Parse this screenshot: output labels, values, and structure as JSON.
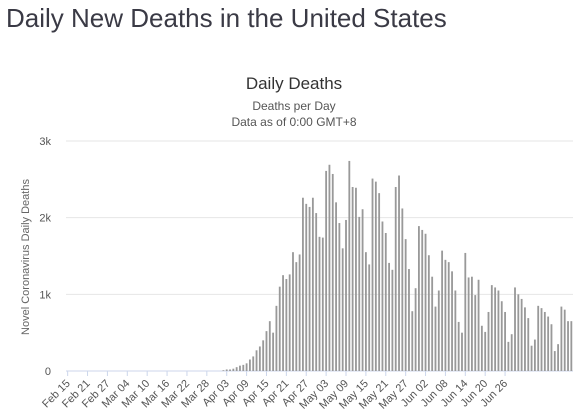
{
  "page": {
    "heading": "Daily New Deaths in the United States"
  },
  "colors": {
    "bar": "#999999",
    "gridline": "#e6e6e6",
    "baseline": "#ccd6eb"
  },
  "chart_data": {
    "type": "bar",
    "title": "Daily Deaths",
    "subtitle": "Deaths per Day",
    "subtitle2": "Data as of 0:00 GMT+8",
    "ylabel": "Novel Coronavirus Daily Deaths",
    "xlabel": "",
    "ylim": [
      0,
      3000
    ],
    "yticks": [
      0,
      1000,
      2000,
      3000
    ],
    "ytick_labels": [
      "0",
      "1k",
      "2k",
      "3k"
    ],
    "grid": true,
    "legend": "none",
    "x_start": "Feb 15",
    "x_end": "Jun 26",
    "xtick_labels": [
      "Feb 15",
      "Feb 21",
      "Feb 27",
      "Mar 04",
      "Mar 10",
      "Mar 16",
      "Mar 22",
      "Mar 28",
      "Apr 03",
      "Apr 09",
      "Apr 15",
      "Apr 21",
      "Apr 27",
      "May 03",
      "May 09",
      "May 15",
      "May 21",
      "May 27",
      "Jun 02",
      "Jun 08",
      "Jun 14",
      "Jun 20",
      "Jun 26"
    ],
    "values": [
      0,
      0,
      0,
      0,
      0,
      0,
      0,
      0,
      0,
      0,
      0,
      0,
      0,
      0,
      0,
      0,
      0,
      0,
      0,
      0,
      0,
      0,
      0,
      0,
      0,
      0,
      0,
      0,
      0,
      0,
      0,
      0,
      0,
      0,
      0,
      0,
      0,
      0,
      0,
      0,
      0,
      0,
      0,
      0,
      0,
      0,
      0,
      10,
      20,
      20,
      30,
      50,
      70,
      80,
      100,
      150,
      190,
      270,
      320,
      400,
      520,
      650,
      500,
      850,
      1100,
      1250,
      1200,
      1260,
      1550,
      1420,
      1520,
      2260,
      2180,
      2140,
      2260,
      2060,
      1750,
      1740,
      2610,
      2690,
      2570,
      2200,
      1930,
      1600,
      1970,
      2740,
      2400,
      2390,
      2010,
      2110,
      1550,
      1390,
      2510,
      2470,
      2320,
      1950,
      1800,
      1410,
      1320,
      2400,
      2550,
      2120,
      1720,
      1330,
      780,
      1080,
      1890,
      1840,
      1790,
      1510,
      1230,
      840,
      1050,
      1570,
      1450,
      1420,
      1300,
      1050,
      640,
      500,
      1540,
      1220,
      1230,
      990,
      1190,
      590,
      510,
      770,
      1120,
      1090,
      1050,
      910,
      770,
      380,
      480,
      1090,
      1000,
      940,
      830,
      690,
      330,
      410,
      850,
      820,
      770,
      710,
      610,
      260,
      350,
      840,
      800,
      650,
      650
    ]
  }
}
